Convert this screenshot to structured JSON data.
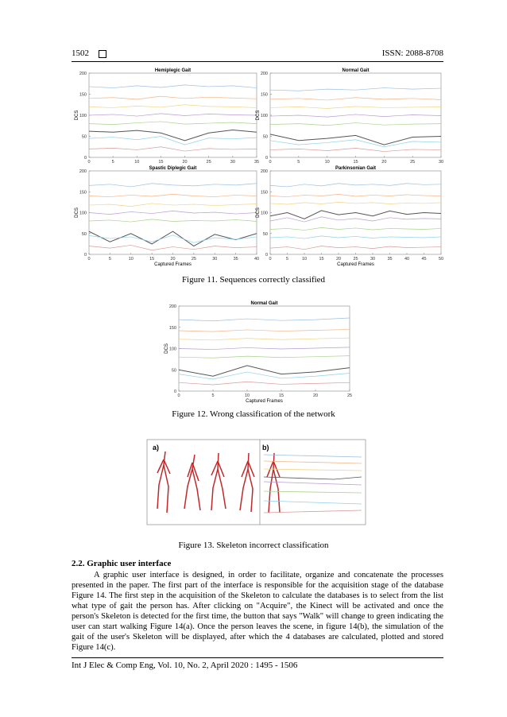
{
  "document": {
    "header": {
      "page": "1502",
      "issn": "ISSN: 2088-8708"
    },
    "fig11_caption": "Figure 11. Sequences correctly classified",
    "fig12_caption": "Figure 12. Wrong classification of the network",
    "fig13": {
      "labels": [
        "a)",
        "b)"
      ],
      "caption": "Figure 13. Skeleton incorrect classification"
    },
    "section": {
      "heading": "2.2.   Graphic user interface",
      "paragraph": "A graphic user interface is designed, in order to facilitate, organize and concatenate the processes presented in the paper. The first part of the interface is responsible for the acquisition stage of the database Figure 14. The first step in the acquisition of the Skeleton to calculate the databases is to select from the list what type of gait the person has. After clicking on \"Acquire\", the Kinect will be activated and once the person's Skeleton is detected for the first time, the button that says \"Walk\" will change to green indicating the user can start walking Figure 14(a). Once the person leaves the scene, in figure 14(b), the simulation of the gait of the user's Skeleton will be displayed, after which the 4 databases are calculated, plotted and stored Figure 14(c)."
    },
    "footer": "Int J Elec & Comp Eng, Vol. 10, No. 2, April 2020 :  1495 - 1506"
  },
  "chart_data": [
    {
      "type": "line",
      "title": "Hemiplegic Gait",
      "ylabel": "DCS",
      "x": [
        0,
        5,
        10,
        15,
        20,
        25,
        30,
        35
      ],
      "xlim": [
        0,
        35
      ],
      "xticks": [
        0,
        5,
        10,
        15,
        20,
        25,
        30,
        35
      ],
      "ylim": [
        0,
        200
      ],
      "yticks": [
        0,
        50,
        100,
        150,
        200
      ],
      "series": [
        {
          "color": "#9dbfe0",
          "values": [
            168,
            165,
            170,
            166,
            172,
            168,
            170,
            165
          ]
        },
        {
          "color": "#f2b58c",
          "values": [
            140,
            142,
            138,
            145,
            140,
            143,
            141,
            139
          ]
        },
        {
          "color": "#f0d48a",
          "values": [
            120,
            118,
            122,
            119,
            125,
            121,
            120,
            118
          ]
        },
        {
          "color": "#b99ccf",
          "values": [
            100,
            102,
            98,
            104,
            99,
            103,
            101,
            100
          ]
        },
        {
          "color": "#a9d18e",
          "values": [
            80,
            78,
            82,
            85,
            79,
            81,
            83,
            80
          ]
        },
        {
          "color": "#555555",
          "values": [
            62,
            60,
            64,
            58,
            40,
            58,
            65,
            60
          ]
        },
        {
          "color": "#8fd0ea",
          "values": [
            45,
            48,
            42,
            50,
            30,
            46,
            44,
            47
          ]
        },
        {
          "color": "#d79a9a",
          "values": [
            20,
            22,
            18,
            25,
            15,
            21,
            19,
            20
          ]
        }
      ]
    },
    {
      "type": "line",
      "title": "Normal Gait",
      "ylabel": "DCS",
      "x": [
        0,
        5,
        10,
        15,
        20,
        25,
        30
      ],
      "xlim": [
        0,
        30
      ],
      "xticks": [
        0,
        5,
        10,
        15,
        20,
        25,
        30
      ],
      "ylim": [
        0,
        200
      ],
      "yticks": [
        0,
        50,
        100,
        150,
        200
      ],
      "series": [
        {
          "color": "#9dbfe0",
          "values": [
            160,
            158,
            162,
            160,
            165,
            162,
            164
          ]
        },
        {
          "color": "#f2b58c",
          "values": [
            138,
            140,
            136,
            142,
            138,
            140,
            137
          ]
        },
        {
          "color": "#f0d48a",
          "values": [
            118,
            120,
            116,
            121,
            118,
            119,
            120
          ]
        },
        {
          "color": "#b99ccf",
          "values": [
            98,
            100,
            96,
            102,
            97,
            101,
            99
          ]
        },
        {
          "color": "#a9d18e",
          "values": [
            78,
            80,
            76,
            82,
            77,
            79,
            80
          ]
        },
        {
          "color": "#555555",
          "values": [
            55,
            40,
            45,
            52,
            30,
            48,
            50
          ]
        },
        {
          "color": "#8fd0ea",
          "values": [
            40,
            30,
            35,
            42,
            25,
            38,
            36
          ]
        },
        {
          "color": "#d79a9a",
          "values": [
            18,
            20,
            16,
            22,
            14,
            19,
            18
          ]
        }
      ]
    },
    {
      "type": "line",
      "title": "Spastic Diplegic Gait",
      "ylabel": "DCS",
      "xlabel": "Captured Frames",
      "x": [
        0,
        5,
        10,
        15,
        20,
        25,
        30,
        35,
        40
      ],
      "xlim": [
        0,
        40
      ],
      "xticks": [
        0,
        5,
        10,
        15,
        20,
        25,
        30,
        35,
        40
      ],
      "ylim": [
        0,
        200
      ],
      "yticks": [
        0,
        50,
        100,
        150,
        200
      ],
      "series": [
        {
          "color": "#9dbfe0",
          "values": [
            165,
            168,
            162,
            170,
            166,
            164,
            168,
            166,
            170
          ]
        },
        {
          "color": "#f2b58c",
          "values": [
            140,
            138,
            142,
            139,
            144,
            140,
            138,
            142,
            140
          ]
        },
        {
          "color": "#f0d48a",
          "values": [
            118,
            120,
            115,
            122,
            118,
            120,
            117,
            119,
            121
          ]
        },
        {
          "color": "#b99ccf",
          "values": [
            100,
            96,
            102,
            98,
            104,
            99,
            101,
            97,
            100
          ]
        },
        {
          "color": "#a9d18e",
          "values": [
            80,
            82,
            78,
            84,
            79,
            81,
            80,
            83,
            79
          ]
        },
        {
          "color": "#555555",
          "values": [
            55,
            30,
            50,
            25,
            55,
            20,
            48,
            35,
            50
          ]
        },
        {
          "color": "#8fd0ea",
          "values": [
            45,
            38,
            42,
            30,
            46,
            28,
            40,
            36,
            42
          ]
        },
        {
          "color": "#d79a9a",
          "values": [
            20,
            15,
            22,
            10,
            18,
            12,
            20,
            16,
            18
          ]
        }
      ]
    },
    {
      "type": "line",
      "title": "Parkinsonian Gait",
      "ylabel": "DCS",
      "xlabel": "Captured Frames",
      "x": [
        0,
        5,
        10,
        15,
        20,
        25,
        30,
        35,
        40,
        45,
        50
      ],
      "xlim": [
        0,
        50
      ],
      "xticks": [
        0,
        5,
        10,
        15,
        20,
        25,
        30,
        35,
        40,
        45,
        50
      ],
      "ylim": [
        0,
        200
      ],
      "yticks": [
        0,
        50,
        100,
        150,
        200
      ],
      "series": [
        {
          "color": "#9dbfe0",
          "values": [
            165,
            162,
            168,
            164,
            170,
            166,
            168,
            165,
            170,
            167,
            168
          ]
        },
        {
          "color": "#f2b58c",
          "values": [
            140,
            138,
            142,
            140,
            144,
            139,
            142,
            140,
            143,
            141,
            140
          ]
        },
        {
          "color": "#f0d48a",
          "values": [
            122,
            120,
            124,
            121,
            125,
            122,
            124,
            121,
            123,
            122,
            124
          ]
        },
        {
          "color": "#555555",
          "values": [
            92,
            100,
            85,
            105,
            95,
            100,
            92,
            104,
            96,
            100,
            98
          ]
        },
        {
          "color": "#b99ccf",
          "values": [
            80,
            88,
            78,
            90,
            82,
            86,
            80,
            88,
            84,
            86,
            85
          ]
        },
        {
          "color": "#a9d18e",
          "values": [
            60,
            62,
            58,
            64,
            60,
            63,
            59,
            62,
            61,
            60,
            62
          ]
        },
        {
          "color": "#8fd0ea",
          "values": [
            40,
            42,
            38,
            44,
            40,
            43,
            39,
            42,
            41,
            40,
            42
          ]
        },
        {
          "color": "#d79a9a",
          "values": [
            15,
            18,
            12,
            20,
            16,
            18,
            14,
            19,
            16,
            17,
            18
          ]
        }
      ]
    },
    {
      "type": "line",
      "title": "Normal Gait",
      "ylabel": "DCS",
      "xlabel": "Captured Frames",
      "x": [
        0,
        5,
        10,
        15,
        20,
        25
      ],
      "xlim": [
        0,
        25
      ],
      "xticks": [
        0,
        5,
        10,
        15,
        20,
        25
      ],
      "ylim": [
        0,
        200
      ],
      "yticks": [
        0,
        50,
        100,
        150,
        200
      ],
      "series": [
        {
          "color": "#9dbfe0",
          "values": [
            168,
            165,
            170,
            166,
            168,
            172
          ]
        },
        {
          "color": "#f2b58c",
          "values": [
            142,
            140,
            144,
            141,
            143,
            145
          ]
        },
        {
          "color": "#f0d48a",
          "values": [
            122,
            120,
            124,
            121,
            123,
            125
          ]
        },
        {
          "color": "#b99ccf",
          "values": [
            100,
            98,
            102,
            99,
            101,
            103
          ]
        },
        {
          "color": "#a9d18e",
          "values": [
            80,
            78,
            82,
            79,
            81,
            83
          ]
        },
        {
          "color": "#555555",
          "values": [
            50,
            35,
            60,
            40,
            45,
            55
          ]
        },
        {
          "color": "#8fd0ea",
          "values": [
            40,
            28,
            45,
            30,
            35,
            42
          ]
        },
        {
          "color": "#d79a9a",
          "values": [
            20,
            15,
            22,
            16,
            18,
            20
          ]
        }
      ]
    }
  ]
}
